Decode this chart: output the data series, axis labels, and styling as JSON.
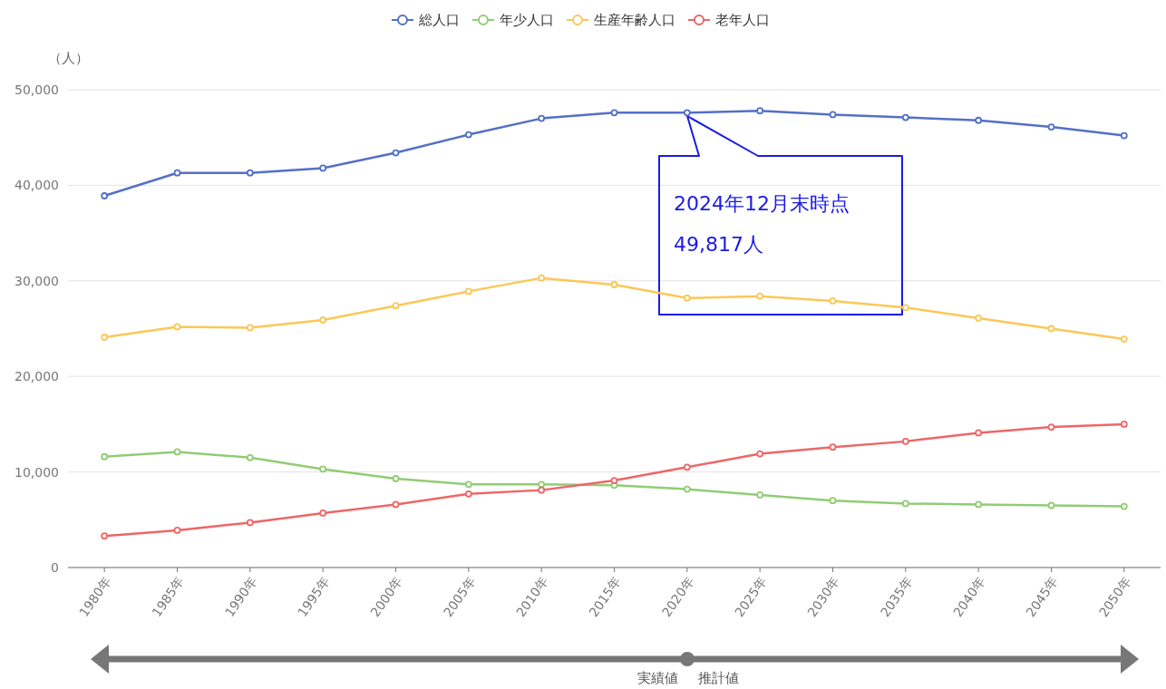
{
  "chart_data": {
    "type": "line",
    "ylabel": "（人）",
    "categories": [
      "1980年",
      "1985年",
      "1990年",
      "1995年",
      "2000年",
      "2005年",
      "2010年",
      "2015年",
      "2020年",
      "2025年",
      "2030年",
      "2035年",
      "2040年",
      "2045年",
      "2050年"
    ],
    "series": [
      {
        "name": "総人口",
        "color": "#5470c6",
        "values": [
          38900,
          41300,
          41300,
          41800,
          43400,
          45300,
          47000,
          47600,
          47600,
          47800,
          47400,
          47100,
          46800,
          46100,
          45200
        ]
      },
      {
        "name": "年少人口",
        "color": "#91cc75",
        "values": [
          11600,
          12100,
          11500,
          10300,
          9300,
          8700,
          8700,
          8600,
          8200,
          7600,
          7000,
          6700,
          6600,
          6500,
          6400
        ]
      },
      {
        "name": "生産年齢人口",
        "color": "#fac858",
        "values": [
          24100,
          25200,
          25100,
          25900,
          27400,
          28900,
          30300,
          29600,
          28200,
          28400,
          27900,
          27200,
          26100,
          25000,
          23900
        ]
      },
      {
        "name": "老年人口",
        "color": "#ee6666",
        "values": [
          3300,
          3900,
          4700,
          5700,
          6600,
          7700,
          8100,
          9100,
          10500,
          11900,
          12600,
          13200,
          14100,
          14700,
          15000
        ]
      }
    ],
    "ylim": [
      0,
      50000
    ],
    "yticks": [
      {
        "value": 0,
        "label": "0"
      },
      {
        "value": 10000,
        "label": "10,000"
      },
      {
        "value": 20000,
        "label": "20,000"
      },
      {
        "value": 30000,
        "label": "30,000"
      },
      {
        "value": 40000,
        "label": "40,000"
      },
      {
        "value": 50000,
        "label": "50,000"
      }
    ],
    "grid": "y",
    "legend": "top",
    "marker": "circle",
    "line_style": "solid",
    "annotations": [
      "2024年12月末時点\n49,817人",
      "実績値",
      "推計値"
    ]
  }
}
